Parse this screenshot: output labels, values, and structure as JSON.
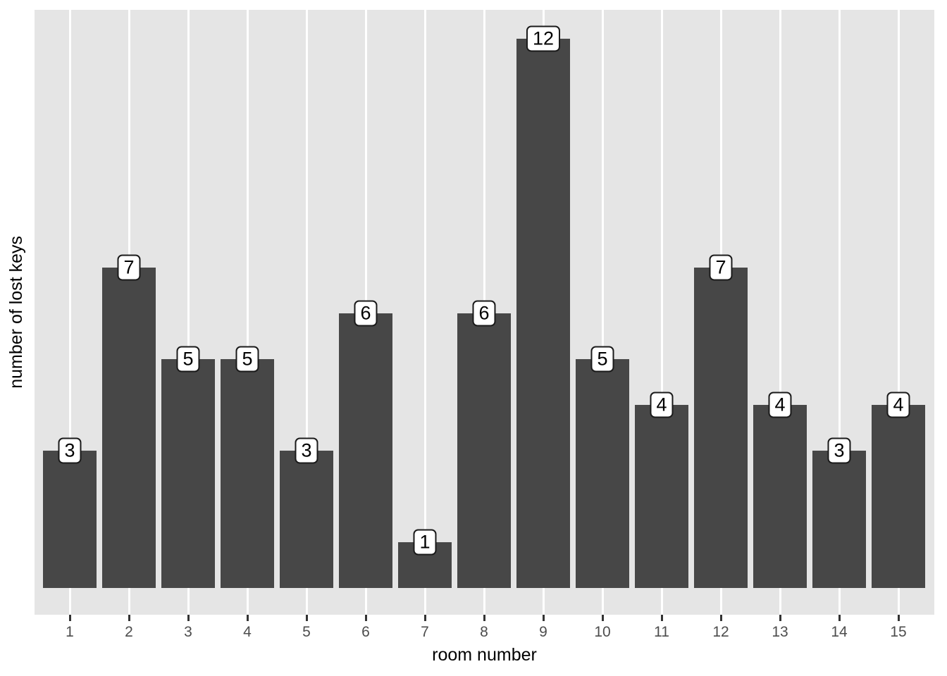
{
  "figure": {
    "colors": {
      "background": "#FFFFFF",
      "panel_background": "#E5E5E5",
      "gridline_color": "#FFFFFF",
      "bar_fill": "#474747",
      "tick_color": "#333333",
      "tick_label_color": "#4D4D4D",
      "axis_title_color": "#000000",
      "label_box_bg": "#FFFFFF",
      "label_box_border": "#1A1A1A"
    }
  },
  "chart_data": {
    "type": "bar",
    "title": "",
    "xlabel": "room number",
    "ylabel": "number of lost keys",
    "categories": [
      "1",
      "2",
      "3",
      "4",
      "5",
      "6",
      "7",
      "8",
      "9",
      "10",
      "11",
      "12",
      "13",
      "14",
      "15"
    ],
    "values": [
      3,
      7,
      5,
      5,
      3,
      6,
      1,
      6,
      12,
      5,
      4,
      7,
      4,
      3,
      4
    ],
    "bar_labels": [
      "3",
      "7",
      "5",
      "5",
      "3",
      "6",
      "1",
      "6",
      "12",
      "5",
      "4",
      "7",
      "4",
      "3",
      "4"
    ],
    "ylim": [
      -0.6,
      12.6
    ],
    "y_ticks_shown": false,
    "grid": "vertical-major-only",
    "legend": "none",
    "style": "ggplot2-grey-theme"
  }
}
